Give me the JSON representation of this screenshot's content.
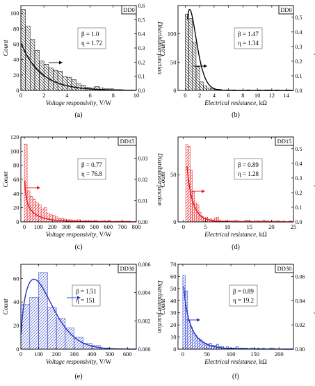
{
  "charts": [
    {
      "type": "bar",
      "id": "a",
      "caption": "(a)",
      "tag": "DD0",
      "color": "#000000",
      "hatch": "back",
      "xlabel": "Voltage responsivity",
      "xunit": ", V/W",
      "ylabel": "Count",
      "y2label": "Distribution function",
      "xlim": [
        0,
        10
      ],
      "xticks": [
        0,
        2,
        4,
        6,
        8,
        10
      ],
      "ylim": [
        0,
        110
      ],
      "yticks": [
        0,
        20,
        40,
        60,
        80,
        100
      ],
      "y2lim": [
        0,
        0.6
      ],
      "y2ticks": [
        "0.0",
        "0.1",
        "0.2",
        "0.3",
        "0.4",
        "0.5",
        "0.6"
      ],
      "bin_edges": [
        0.0,
        0.4,
        0.8,
        1.2,
        1.6,
        2.0,
        2.4,
        2.8,
        3.2,
        3.6,
        4.0,
        4.4,
        4.8,
        5.2,
        5.6,
        6.0,
        6.4,
        6.8,
        7.2,
        7.6,
        8.0,
        8.4,
        8.8
      ],
      "counts": [
        105,
        83,
        66,
        52,
        38,
        34,
        29,
        26,
        25,
        18,
        17,
        14,
        9,
        7,
        4,
        3,
        5,
        3,
        2,
        2,
        1,
        1
      ],
      "curve": {
        "beta": 1.0,
        "eta": 1.72,
        "scale": 0.58,
        "x_from": 0.0,
        "x_to": 10
      },
      "params": {
        "beta": "β = 1.0",
        "eta": "η = 1.72"
      }
    },
    {
      "type": "bar",
      "id": "b",
      "caption": "(b)",
      "tag": "DD0",
      "color": "#000000",
      "hatch": "back",
      "xlabel": "Electrical resistance",
      "xunit": ", kΩ",
      "ylabel": "Count",
      "y2label": "Distribution function",
      "xlim": [
        -1,
        15
      ],
      "xticks": [
        0,
        2,
        4,
        6,
        8,
        10,
        12,
        14
      ],
      "ylim": [
        0,
        150
      ],
      "yticks": [
        0,
        50,
        100
      ],
      "y2lim": [
        0,
        0.58
      ],
      "y2ticks": [
        "0.0",
        "0.1",
        "0.2",
        "0.3",
        "0.4",
        "0.5"
      ],
      "bin_edges": [
        0.0,
        0.5,
        1.0,
        1.5,
        2.0,
        2.5,
        3.0,
        3.5,
        4.0,
        4.5,
        5.0,
        5.5,
        6.0,
        6.5,
        7.0,
        7.5,
        8.0,
        8.5,
        9.0,
        9.5,
        10.0,
        10.5,
        11.0,
        11.5,
        12.0,
        12.5,
        13.0,
        13.5,
        14.0,
        14.5
      ],
      "counts": [
        135,
        127,
        85,
        42,
        15,
        8,
        4,
        3,
        2,
        2,
        1,
        1,
        1,
        1,
        0,
        0,
        0,
        1,
        0,
        0,
        1,
        0,
        1,
        1,
        0,
        1,
        0,
        0,
        1
      ],
      "curve": {
        "beta": 1.47,
        "eta": 1.34,
        "scale": 1.0,
        "x_from": 0.3,
        "x_to": 15
      },
      "params": {
        "beta": "β = 1.47",
        "eta": "η = 1.34"
      }
    },
    {
      "type": "bar",
      "id": "c",
      "caption": "(c)",
      "tag": "DD15",
      "color": "#e8141c",
      "hatch": "fwd",
      "xlabel": "Voltage responsivity",
      "xunit": ", V/W",
      "ylabel": "Count",
      "y2label": "Distribution function",
      "xlim": [
        -25,
        800
      ],
      "xticks": [
        0,
        100,
        200,
        300,
        400,
        500,
        600,
        700,
        800
      ],
      "ylim": [
        0,
        120
      ],
      "yticks": [
        0,
        20,
        40,
        60,
        80,
        100,
        120
      ],
      "y2lim": [
        0,
        0.04
      ],
      "y2ticks": [
        "0.00",
        "0.01",
        "0.02",
        "0.03"
      ],
      "bin_edges": [
        0,
        20,
        40,
        60,
        80,
        100,
        120,
        140,
        160,
        180,
        200,
        220,
        240,
        260,
        280,
        300,
        320,
        340,
        360,
        380,
        400,
        420,
        440,
        460,
        480,
        500,
        520,
        540,
        560,
        580,
        600,
        620,
        640,
        660,
        680,
        700,
        720,
        740,
        760
      ],
      "counts": [
        110,
        44,
        36,
        32,
        27,
        24,
        18,
        20,
        12,
        10,
        9,
        7,
        5,
        5,
        4,
        3,
        3,
        2,
        2,
        3,
        1,
        2,
        2,
        2,
        1,
        2,
        1,
        1,
        2,
        1,
        2,
        0,
        1,
        1,
        1,
        1,
        1,
        1
      ],
      "curve": {
        "beta": 0.77,
        "eta": 76.8,
        "scale": 1.0,
        "x_from": 3,
        "x_to": 800
      },
      "params": {
        "beta": "β = 0.77",
        "eta": "η = 76.8"
      }
    },
    {
      "type": "bar",
      "id": "d",
      "caption": "(d)",
      "tag": "DD15",
      "color": "#e8141c",
      "hatch": "fwd",
      "xlabel": "Electrical resistance",
      "xunit": ", kΩ",
      "ylabel": "Count",
      "y2label": "Distribution function",
      "xlim": [
        -1.25,
        25
      ],
      "xticks": [
        0,
        5,
        10,
        15,
        20,
        25
      ],
      "ylim": [
        0,
        90
      ],
      "yticks": [
        0,
        50
      ],
      "y2lim": [
        0,
        0.58
      ],
      "y2ticks": [
        "0.0",
        "0.1",
        "0.2",
        "0.3",
        "0.4",
        "0.5"
      ],
      "bin_edges": [
        0.0,
        0.5,
        1.0,
        1.5,
        2.0,
        2.5,
        3.0,
        3.5,
        4.0,
        4.5,
        5.0,
        5.5,
        6.0,
        6.5,
        7.0,
        7.5,
        8.0,
        8.5,
        9.0,
        9.5,
        10.0,
        10.5,
        11.0,
        11.5,
        12.0,
        12.5,
        13.0,
        13.5,
        14.0,
        14.5,
        15.0,
        15.5,
        16.0,
        16.5,
        17.0,
        17.5,
        18.0,
        18.5,
        19.0,
        19.5,
        20.0,
        20.5,
        21.0,
        21.5,
        22.0,
        22.5,
        23.0,
        23.5,
        24.0,
        24.5
      ],
      "counts": [
        0,
        82,
        80,
        55,
        32,
        20,
        18,
        10,
        6,
        4,
        5,
        3,
        3,
        2,
        4,
        5,
        2,
        1,
        1,
        2,
        1,
        1,
        1,
        2,
        1,
        1,
        0,
        1,
        2,
        1,
        1,
        0,
        1,
        1,
        1,
        0,
        2,
        1,
        1,
        0,
        1,
        0,
        1,
        1,
        0,
        1,
        0,
        0,
        1
      ],
      "curve": {
        "beta": 0.89,
        "eta": 1.28,
        "scale": 1.0,
        "x_from": 0.8,
        "x_to": 25
      },
      "params": {
        "beta": "β = 0.89",
        "eta": "η = 1.28"
      }
    },
    {
      "type": "bar",
      "id": "e",
      "caption": "(e)",
      "tag": "DD30",
      "color": "#1f32c8",
      "hatch": "fwd",
      "xlabel": "Voltage responsivity",
      "xunit": ", V/W",
      "ylabel": "Count",
      "y2label": "Distribution function",
      "xlim": [
        0,
        650
      ],
      "xticks": [
        0,
        100,
        200,
        300,
        400,
        500,
        600
      ],
      "ylim": [
        0,
        72
      ],
      "yticks": [
        0,
        20,
        40,
        60
      ],
      "y2lim": [
        0,
        0.006
      ],
      "y2ticks": [
        "0.000",
        "0.002",
        "0.004",
        "0.006"
      ],
      "bin_edges": [
        0,
        50,
        100,
        150,
        200,
        250,
        300,
        350,
        400,
        450,
        500
      ],
      "counts": [
        38,
        44,
        65,
        35,
        26,
        18,
        10,
        5,
        3,
        1
      ],
      "curve": {
        "beta": 1.51,
        "eta": 151,
        "scale": 1.0,
        "x_from": 2,
        "x_to": 650
      },
      "params": {
        "beta": "β = 1.51",
        "eta": "η = 151"
      }
    },
    {
      "type": "bar",
      "id": "f",
      "caption": "(f)",
      "tag": "DD30",
      "color": "#1f32c8",
      "hatch": "fwd",
      "xlabel": "Electrical resistance",
      "xunit": ", kΩ",
      "ylabel": "Count",
      "y2label": "Distribution function",
      "xlim": [
        -10,
        230
      ],
      "xticks": [
        0,
        50,
        100,
        150,
        200
      ],
      "ylim": [
        0,
        70
      ],
      "yticks": [
        0,
        10,
        20,
        30,
        40,
        50,
        60,
        70
      ],
      "y2lim": [
        0,
        0.07
      ],
      "y2ticks": [
        "0.00",
        "0.02",
        "0.04",
        "0.06"
      ],
      "bin_edges": [
        0,
        5,
        10,
        15,
        20,
        25,
        30,
        35,
        40,
        45,
        50,
        55,
        60,
        65,
        70,
        75,
        80,
        85,
        90,
        95,
        100,
        105,
        110,
        115,
        120,
        125,
        130,
        135,
        140,
        145,
        150,
        155,
        160,
        165,
        170,
        175,
        180,
        185,
        190
      ],
      "counts": [
        61,
        48,
        24,
        18,
        13,
        11,
        9,
        8,
        6,
        5,
        4,
        5,
        3,
        3,
        4,
        2,
        2,
        1,
        2,
        1,
        1,
        1,
        2,
        1,
        1,
        1,
        1,
        0,
        1,
        1,
        0,
        1,
        0,
        1,
        0,
        0,
        1,
        1
      ],
      "curve": {
        "beta": 0.89,
        "eta": 19.2,
        "scale": 1.0,
        "x_from": 2,
        "x_to": 230
      },
      "params": {
        "beta": "β = 0.89",
        "eta": "η = 19.2"
      }
    }
  ]
}
